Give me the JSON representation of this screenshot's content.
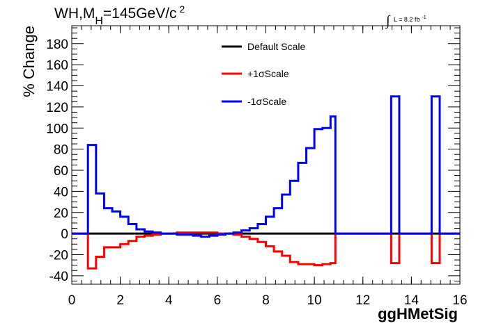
{
  "chart_data": {
    "type": "line",
    "title_main": "WH,M",
    "title_sub": "H",
    "title_rest": "=145GeV/c",
    "title_sup": "2",
    "lumi_symbol": "∫",
    "lumi_text": "L = 8.2 fb",
    "lumi_sup": "-1",
    "xlabel": "ggHMetSig",
    "ylabel": "% Change",
    "xlim": [
      0,
      16
    ],
    "ylim": [
      -48,
      197
    ],
    "x_ticks": [
      0,
      2,
      4,
      6,
      8,
      10,
      12,
      14,
      16
    ],
    "y_ticks": [
      -40,
      -20,
      0,
      20,
      40,
      60,
      80,
      100,
      120,
      140,
      160,
      180
    ],
    "bin_edges": [
      0,
      0.6667,
      1.0,
      1.3333,
      1.6667,
      2.0,
      2.3333,
      2.6667,
      3.0,
      3.3333,
      3.6667,
      4.0,
      4.3333,
      4.6667,
      5.0,
      5.3333,
      5.6667,
      6.0,
      6.3333,
      6.6667,
      7.0,
      7.3333,
      7.6667,
      8.0,
      8.3333,
      8.6667,
      9.0,
      9.3333,
      9.6667,
      10.0,
      10.3333,
      10.6667,
      10.8667,
      13.0,
      13.1667,
      13.5,
      14.6667,
      14.8333,
      15.1667,
      16.0
    ],
    "series": [
      {
        "name": "Default Scale",
        "color": "#000000",
        "values": [
          0,
          0,
          0,
          0,
          0,
          0,
          0,
          0,
          0,
          0,
          0,
          0,
          0,
          0,
          0,
          0,
          0,
          0,
          0,
          0,
          0,
          0,
          0,
          0,
          0,
          0,
          0,
          0,
          0,
          0,
          0,
          0,
          0,
          0,
          0,
          0,
          0,
          0,
          0
        ]
      },
      {
        "name": "+1σScale",
        "color": "#ff0000",
        "values": [
          0,
          -33,
          -22,
          -13,
          -13,
          -10,
          -7,
          -3,
          -2,
          -1,
          0,
          0,
          1,
          1,
          1,
          1,
          1,
          0,
          0,
          -1,
          -3,
          -5,
          -8,
          -12,
          -17,
          -21,
          -27,
          -29,
          -29,
          -30,
          -29,
          -28,
          0,
          0,
          -28,
          0,
          0,
          -28,
          0
        ]
      },
      {
        "name": "-1σScale",
        "color": "#0000ff",
        "values": [
          0,
          84,
          38,
          24,
          21,
          16,
          9,
          4,
          2,
          1,
          0,
          0,
          -1,
          -1,
          -2,
          -3,
          -2,
          -1,
          0,
          1,
          3,
          5,
          9,
          16,
          24,
          37,
          50,
          67,
          81,
          99,
          100,
          111,
          0,
          0,
          130,
          0,
          0,
          130,
          0
        ]
      }
    ],
    "legend_position": "top-center"
  }
}
